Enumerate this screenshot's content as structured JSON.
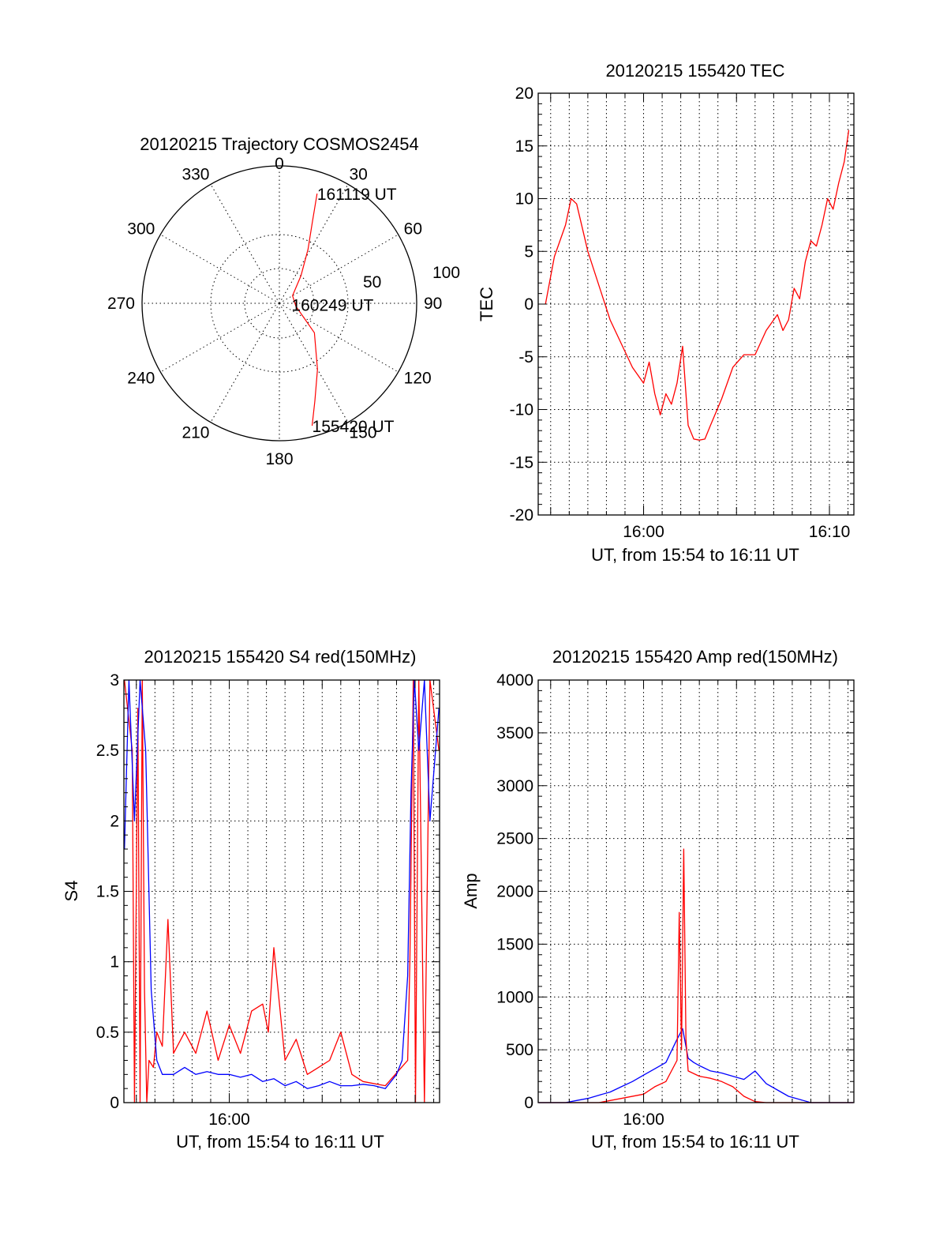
{
  "colors": {
    "red": "#ff0000",
    "blue": "#0000ff",
    "axis": "#000000"
  },
  "chart_data": [
    {
      "type": "polar",
      "title": "20120215 Trajectory COSMOS2454",
      "azimuth_labels": [
        "0",
        "30",
        "60",
        "90",
        "120",
        "150",
        "180",
        "210",
        "240",
        "270",
        "300",
        "330"
      ],
      "radial_labels": [
        "50",
        "100"
      ],
      "trajectory_color": "red",
      "trajectory": [
        {
          "az": 165,
          "el": 7
        },
        {
          "az": 160,
          "el": 22
        },
        {
          "az": 150,
          "el": 40
        },
        {
          "az": 130,
          "el": 60
        },
        {
          "az": 100,
          "el": 79
        },
        {
          "az": 60,
          "el": 80
        },
        {
          "az": 38,
          "el": 67
        },
        {
          "az": 28,
          "el": 50
        },
        {
          "az": 22,
          "el": 32
        },
        {
          "az": 19,
          "el": 14
        }
      ],
      "annotations": [
        {
          "text": "155420 UT",
          "az": 165,
          "el": 7
        },
        {
          "text": "160249 UT",
          "az": 95,
          "el": 82
        },
        {
          "text": "161119 UT",
          "az": 19,
          "el": 14
        }
      ]
    },
    {
      "type": "line",
      "title": "20120215 155420 TEC",
      "xlabel": "UT, from 15:54 to 16:11 UT",
      "ylabel": "TEC",
      "xlim": [
        15.9055,
        16.1886
      ],
      "ylim": [
        -20,
        20
      ],
      "x_ticks": [
        {
          "v": 16.0,
          "label": "16:00"
        },
        {
          "v": 16.1667,
          "label": "16:10"
        }
      ],
      "y_ticks": [
        -20,
        -15,
        -10,
        -5,
        0,
        5,
        10,
        15,
        20
      ],
      "grid": true,
      "series": [
        {
          "color": "red",
          "x": [
            15.912,
            15.92,
            15.93,
            15.935,
            15.94,
            15.95,
            15.97,
            15.99,
            16.0,
            16.005,
            16.01,
            16.015,
            16.02,
            16.025,
            16.03,
            16.035,
            16.037,
            16.04,
            16.045,
            16.05,
            16.055,
            16.06,
            16.07,
            16.08,
            16.09,
            16.1,
            16.11,
            16.12,
            16.125,
            16.13,
            16.135,
            16.14,
            16.145,
            16.15,
            16.155,
            16.16,
            16.165,
            16.17,
            16.175,
            16.18,
            16.184
          ],
          "y": [
            0,
            4.5,
            7.5,
            10,
            9.5,
            5,
            -1.5,
            -6,
            -7.5,
            -5.5,
            -8.5,
            -10.5,
            -8.5,
            -9.5,
            -7.5,
            -4,
            -7,
            -11.5,
            -12.8,
            -12.9,
            -12.8,
            -11.5,
            -9,
            -6,
            -4.8,
            -4.8,
            -2.5,
            -1,
            -2.5,
            -1.5,
            1.5,
            0.5,
            4,
            6,
            5.5,
            7.5,
            10,
            9,
            11.5,
            13.5,
            16.5
          ]
        }
      ]
    },
    {
      "type": "line",
      "title": "20120215 155420 S4 red(150MHz)",
      "xlabel": "UT, from 15:54 to 16:11 UT",
      "ylabel": "S4",
      "xlim": [
        15.9055,
        16.1886
      ],
      "ylim": [
        0,
        3
      ],
      "x_ticks": [
        {
          "v": 16.0,
          "label": "16:00"
        }
      ],
      "y_ticks": [
        {
          "v": 0,
          "label": "0"
        },
        {
          "v": 0.5,
          "label": "0.5"
        },
        {
          "v": 1,
          "label": "1"
        },
        {
          "v": 1.5,
          "label": "1.5"
        },
        {
          "v": 2,
          "label": "2"
        },
        {
          "v": 2.5,
          "label": "2.5"
        },
        {
          "v": 3,
          "label": "3"
        }
      ],
      "grid": true,
      "series": [
        {
          "color": "red",
          "x": [
            15.906,
            15.913,
            15.915,
            15.918,
            15.92,
            15.922,
            15.924,
            15.926,
            15.928,
            15.932,
            15.935,
            15.94,
            15.945,
            15.95,
            15.96,
            15.97,
            15.98,
            15.99,
            16.0,
            16.01,
            16.02,
            16.03,
            16.035,
            16.04,
            16.05,
            16.06,
            16.07,
            16.08,
            16.09,
            16.1,
            16.11,
            16.12,
            16.14,
            16.16,
            16.162,
            16.165,
            16.167,
            16.17,
            16.175,
            16.18,
            16.188
          ],
          "y": [
            3,
            2.5,
            0,
            2.8,
            0,
            3,
            0.8,
            0,
            0.3,
            0.25,
            0.5,
            0.4,
            1.3,
            0.35,
            0.5,
            0.35,
            0.65,
            0.3,
            0.55,
            0.35,
            0.65,
            0.7,
            0.5,
            1.1,
            0.3,
            0.45,
            0.2,
            0.25,
            0.3,
            0.5,
            0.2,
            0.15,
            0.12,
            0.3,
            1.0,
            3,
            0,
            3,
            0,
            3,
            2.5
          ]
        },
        {
          "color": "blue",
          "x": [
            15.906,
            15.91,
            15.915,
            15.92,
            15.925,
            15.93,
            15.935,
            15.94,
            15.95,
            15.96,
            15.97,
            15.98,
            15.99,
            16.0,
            16.01,
            16.02,
            16.03,
            16.04,
            16.05,
            16.06,
            16.07,
            16.08,
            16.09,
            16.1,
            16.11,
            16.12,
            16.13,
            16.14,
            16.15,
            16.155,
            16.16,
            16.163,
            16.166,
            16.17,
            16.175,
            16.18,
            16.188
          ],
          "y": [
            1.8,
            3,
            2,
            3,
            2.5,
            0.8,
            0.3,
            0.2,
            0.2,
            0.25,
            0.2,
            0.22,
            0.2,
            0.2,
            0.18,
            0.2,
            0.15,
            0.17,
            0.12,
            0.15,
            0.1,
            0.12,
            0.15,
            0.12,
            0.12,
            0.13,
            0.12,
            0.1,
            0.2,
            0.3,
            0.9,
            2.2,
            3,
            2.5,
            3,
            2,
            2.8
          ]
        }
      ]
    },
    {
      "type": "line",
      "title": "20120215 155420 Amp red(150MHz)",
      "xlabel": "UT, from 15:54 to 16:11 UT",
      "ylabel": "Amp",
      "xlim": [
        15.9055,
        16.1886
      ],
      "ylim": [
        0,
        4000
      ],
      "x_ticks": [
        {
          "v": 16.0,
          "label": "16:00"
        }
      ],
      "y_ticks": [
        0,
        500,
        1000,
        1500,
        2000,
        2500,
        3000,
        3500,
        4000
      ],
      "grid": true,
      "series": [
        {
          "color": "blue",
          "x": [
            15.906,
            15.93,
            15.94,
            15.95,
            15.96,
            15.97,
            15.98,
            15.99,
            16.0,
            16.01,
            16.02,
            16.03,
            16.035,
            16.04,
            16.045,
            16.05,
            16.06,
            16.07,
            16.08,
            16.09,
            16.1,
            16.11,
            16.12,
            16.13,
            16.14,
            16.15,
            16.188
          ],
          "y": [
            0,
            0,
            20,
            40,
            70,
            100,
            150,
            200,
            260,
            320,
            380,
            600,
            700,
            420,
            380,
            350,
            300,
            280,
            250,
            220,
            300,
            180,
            120,
            60,
            30,
            0,
            0
          ]
        },
        {
          "color": "red",
          "x": [
            15.906,
            15.96,
            15.98,
            16.0,
            16.01,
            16.02,
            16.03,
            16.032,
            16.034,
            16.036,
            16.038,
            16.04,
            16.05,
            16.06,
            16.07,
            16.08,
            16.09,
            16.1,
            16.11,
            16.188
          ],
          "y": [
            0,
            0,
            40,
            80,
            150,
            200,
            400,
            1800,
            500,
            2400,
            600,
            300,
            250,
            230,
            200,
            150,
            60,
            10,
            0,
            0
          ]
        }
      ]
    }
  ]
}
